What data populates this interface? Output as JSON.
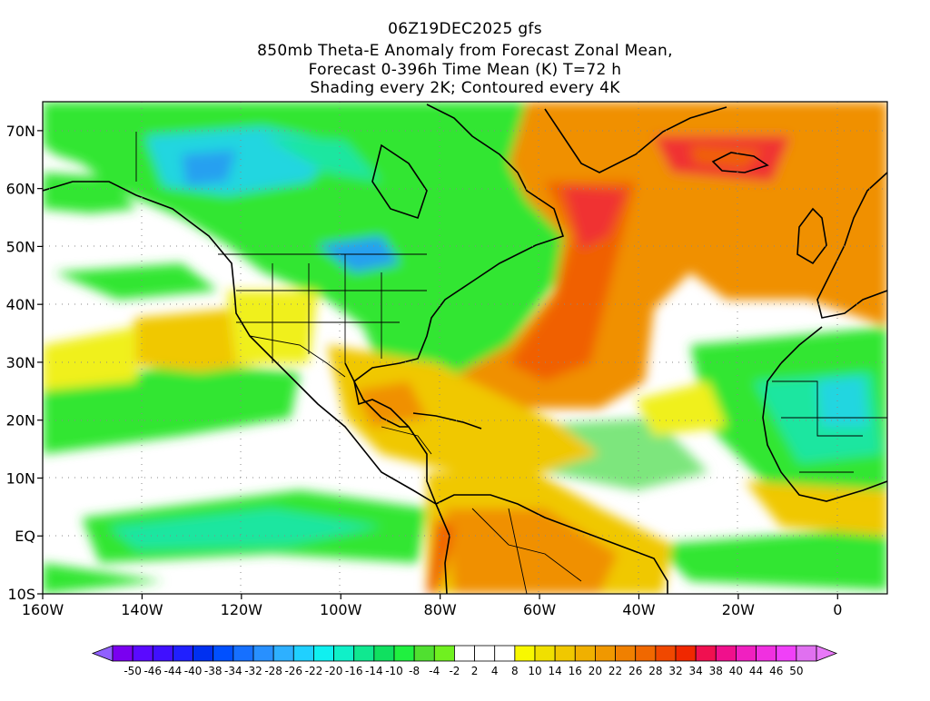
{
  "header": {
    "run": "06Z19DEC2025 gfs",
    "line2": "850mb Theta-E Anomaly from Forecast Zonal Mean,",
    "line3": "Forecast 0-396h Time Mean (K) T=72 h",
    "line4": "Shading every 2K; Contoured every 4K"
  },
  "map": {
    "projection": "cylindrical equidistant",
    "lon_range": [
      -160,
      10
    ],
    "lat_range": [
      -10,
      75
    ],
    "lat_ticks": [
      {
        "value": 70,
        "label": "70N"
      },
      {
        "value": 60,
        "label": "60N"
      },
      {
        "value": 50,
        "label": "50N"
      },
      {
        "value": 40,
        "label": "40N"
      },
      {
        "value": 30,
        "label": "30N"
      },
      {
        "value": 20,
        "label": "20N"
      },
      {
        "value": 10,
        "label": "10N"
      },
      {
        "value": 0,
        "label": "EQ"
      },
      {
        "value": -10,
        "label": "10S"
      }
    ],
    "lon_ticks": [
      {
        "value": -160,
        "label": "160W"
      },
      {
        "value": -140,
        "label": "140W"
      },
      {
        "value": -120,
        "label": "120W"
      },
      {
        "value": -100,
        "label": "100W"
      },
      {
        "value": -80,
        "label": "80W"
      },
      {
        "value": -60,
        "label": "60W"
      },
      {
        "value": -40,
        "label": "40W"
      },
      {
        "value": -20,
        "label": "20W"
      },
      {
        "value": 0,
        "label": "0"
      }
    ],
    "grid": true,
    "colors": {
      "green": "#32e632",
      "light_green": "#7de67d",
      "teal": "#1ee6a0",
      "cyan": "#22d6e0",
      "blue": "#28a0f0",
      "yellow": "#f0f01e",
      "gold": "#f0c800",
      "orange": "#f09000",
      "dark_orange": "#f06000",
      "red": "#f03030",
      "magenta": "#e6146e",
      "land": "#000000"
    }
  },
  "colorbar": {
    "labels": [
      "-50",
      "-46",
      "-44",
      "-40",
      "-38",
      "-34",
      "-32",
      "-28",
      "-26",
      "-22",
      "-20",
      "-16",
      "-14",
      "-10",
      "-8",
      "-4",
      "-2",
      "2",
      "4",
      "8",
      "10",
      "14",
      "16",
      "20",
      "22",
      "26",
      "28",
      "32",
      "34",
      "38",
      "40",
      "44",
      "46",
      "50"
    ],
    "colors": [
      "#7a00f0",
      "#5a0aff",
      "#4010ff",
      "#2020ff",
      "#0030f0",
      "#0050ff",
      "#1670ff",
      "#2890ff",
      "#2eb0ff",
      "#20d0ff",
      "#10f0f0",
      "#10f0c8",
      "#10e890",
      "#10e060",
      "#20f040",
      "#50e030",
      "#70f020",
      "#ffffff",
      "#ffffff",
      "#ffffff",
      "#f8f800",
      "#f0e000",
      "#f0c800",
      "#f0b000",
      "#f09800",
      "#f08000",
      "#f06800",
      "#f04800",
      "#f02800",
      "#f01050",
      "#f0108c",
      "#f020c0",
      "#f030e0",
      "#f040f8",
      "#e070f0"
    ],
    "left_arrow_color": "#9060ff",
    "right_arrow_color": "#e878f8"
  }
}
